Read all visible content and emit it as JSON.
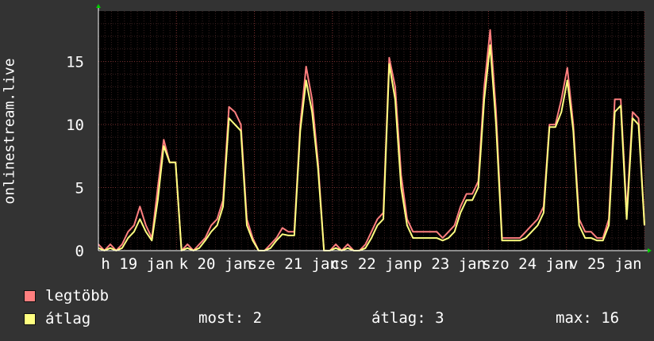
{
  "chart_data": {
    "type": "line",
    "ylabel": "onlinestream.live",
    "ylim": [
      0,
      19
    ],
    "yticks": [
      0,
      5,
      10,
      15
    ],
    "x_tick_labels": [
      "h 19 jan",
      "k 20 jan",
      "sze 21 jan",
      "cs 22 jan",
      "p 23 jan",
      "szo 24 jan",
      "v 25 jan"
    ],
    "x": [
      0,
      2,
      4,
      6,
      8,
      10,
      12,
      14,
      16,
      18,
      20,
      22,
      24,
      26,
      28,
      30,
      32,
      34,
      36,
      38,
      40,
      42,
      44,
      46,
      48,
      50,
      52,
      54,
      56,
      58,
      60,
      62,
      64,
      66,
      68,
      70,
      72,
      74,
      76,
      78,
      80,
      82,
      84,
      86,
      88,
      90,
      92,
      94,
      96,
      98,
      100,
      102,
      104,
      106,
      108,
      110,
      112,
      114,
      116,
      118,
      120,
      122,
      124,
      126,
      128,
      130,
      132,
      134,
      136,
      138,
      140,
      142,
      144,
      146,
      148,
      150,
      152,
      154,
      156,
      158,
      160,
      162,
      164,
      166,
      168,
      170,
      172,
      174,
      176,
      178,
      180,
      182,
      184
    ],
    "series": [
      {
        "name": "legtöbb",
        "color": "#ff7f7f",
        "values": [
          0.5,
          0,
          0.5,
          0,
          0.5,
          1.5,
          2,
          3.5,
          2,
          1,
          5,
          8.8,
          7,
          7,
          0,
          0.5,
          0,
          0.5,
          1,
          2,
          2.5,
          4,
          11.4,
          11,
          10,
          2.5,
          1,
          0,
          0,
          0.5,
          1,
          1.8,
          1.5,
          1.5,
          10,
          14.6,
          12,
          7,
          0,
          0,
          0.5,
          0,
          0.5,
          0,
          0,
          0.5,
          1.5,
          2.5,
          3,
          15.3,
          13,
          6,
          2.5,
          1.5,
          1.5,
          1.5,
          1.5,
          1.5,
          1,
          1.5,
          2,
          3.5,
          4.5,
          4.5,
          5.5,
          13,
          17.5,
          11,
          1,
          1,
          1,
          1,
          1.5,
          2,
          2.5,
          3.5,
          10,
          10,
          12,
          14.5,
          10,
          2.5,
          1.5,
          1.5,
          1,
          1,
          2.5,
          12,
          12,
          3,
          11,
          10.5,
          2
        ]
      },
      {
        "name": "átlag",
        "color": "#ffff80",
        "values": [
          0.2,
          0,
          0.2,
          0,
          0.2,
          1,
          1.5,
          2.5,
          1.5,
          0.8,
          4,
          8.3,
          7,
          7,
          0,
          0.2,
          0,
          0.2,
          0.8,
          1.5,
          2,
          3.5,
          10.5,
          10,
          9.5,
          2,
          0.8,
          0,
          0,
          0.2,
          0.8,
          1.3,
          1.2,
          1.2,
          9.5,
          13.5,
          11,
          6.5,
          0,
          0,
          0.2,
          0,
          0.2,
          0,
          0,
          0.2,
          1,
          2,
          2.5,
          14.8,
          12,
          5,
          2,
          1,
          1,
          1,
          1,
          1,
          0.8,
          1,
          1.5,
          3,
          4,
          4,
          5,
          12,
          16.3,
          10,
          0.8,
          0.8,
          0.8,
          0.8,
          1,
          1.5,
          2,
          3,
          9.8,
          9.8,
          11,
          13.5,
          9.5,
          2,
          1,
          1,
          0.8,
          0.8,
          2,
          11,
          11.5,
          2.5,
          10.5,
          10,
          2
        ]
      }
    ]
  },
  "legend": [
    {
      "label": "legtöbb",
      "color": "#ff7f7f"
    },
    {
      "label": "átlag",
      "color": "#ffff80"
    }
  ],
  "stats": {
    "now": "most: 2",
    "avg": "átlag: 3",
    "max": "max: 16"
  }
}
